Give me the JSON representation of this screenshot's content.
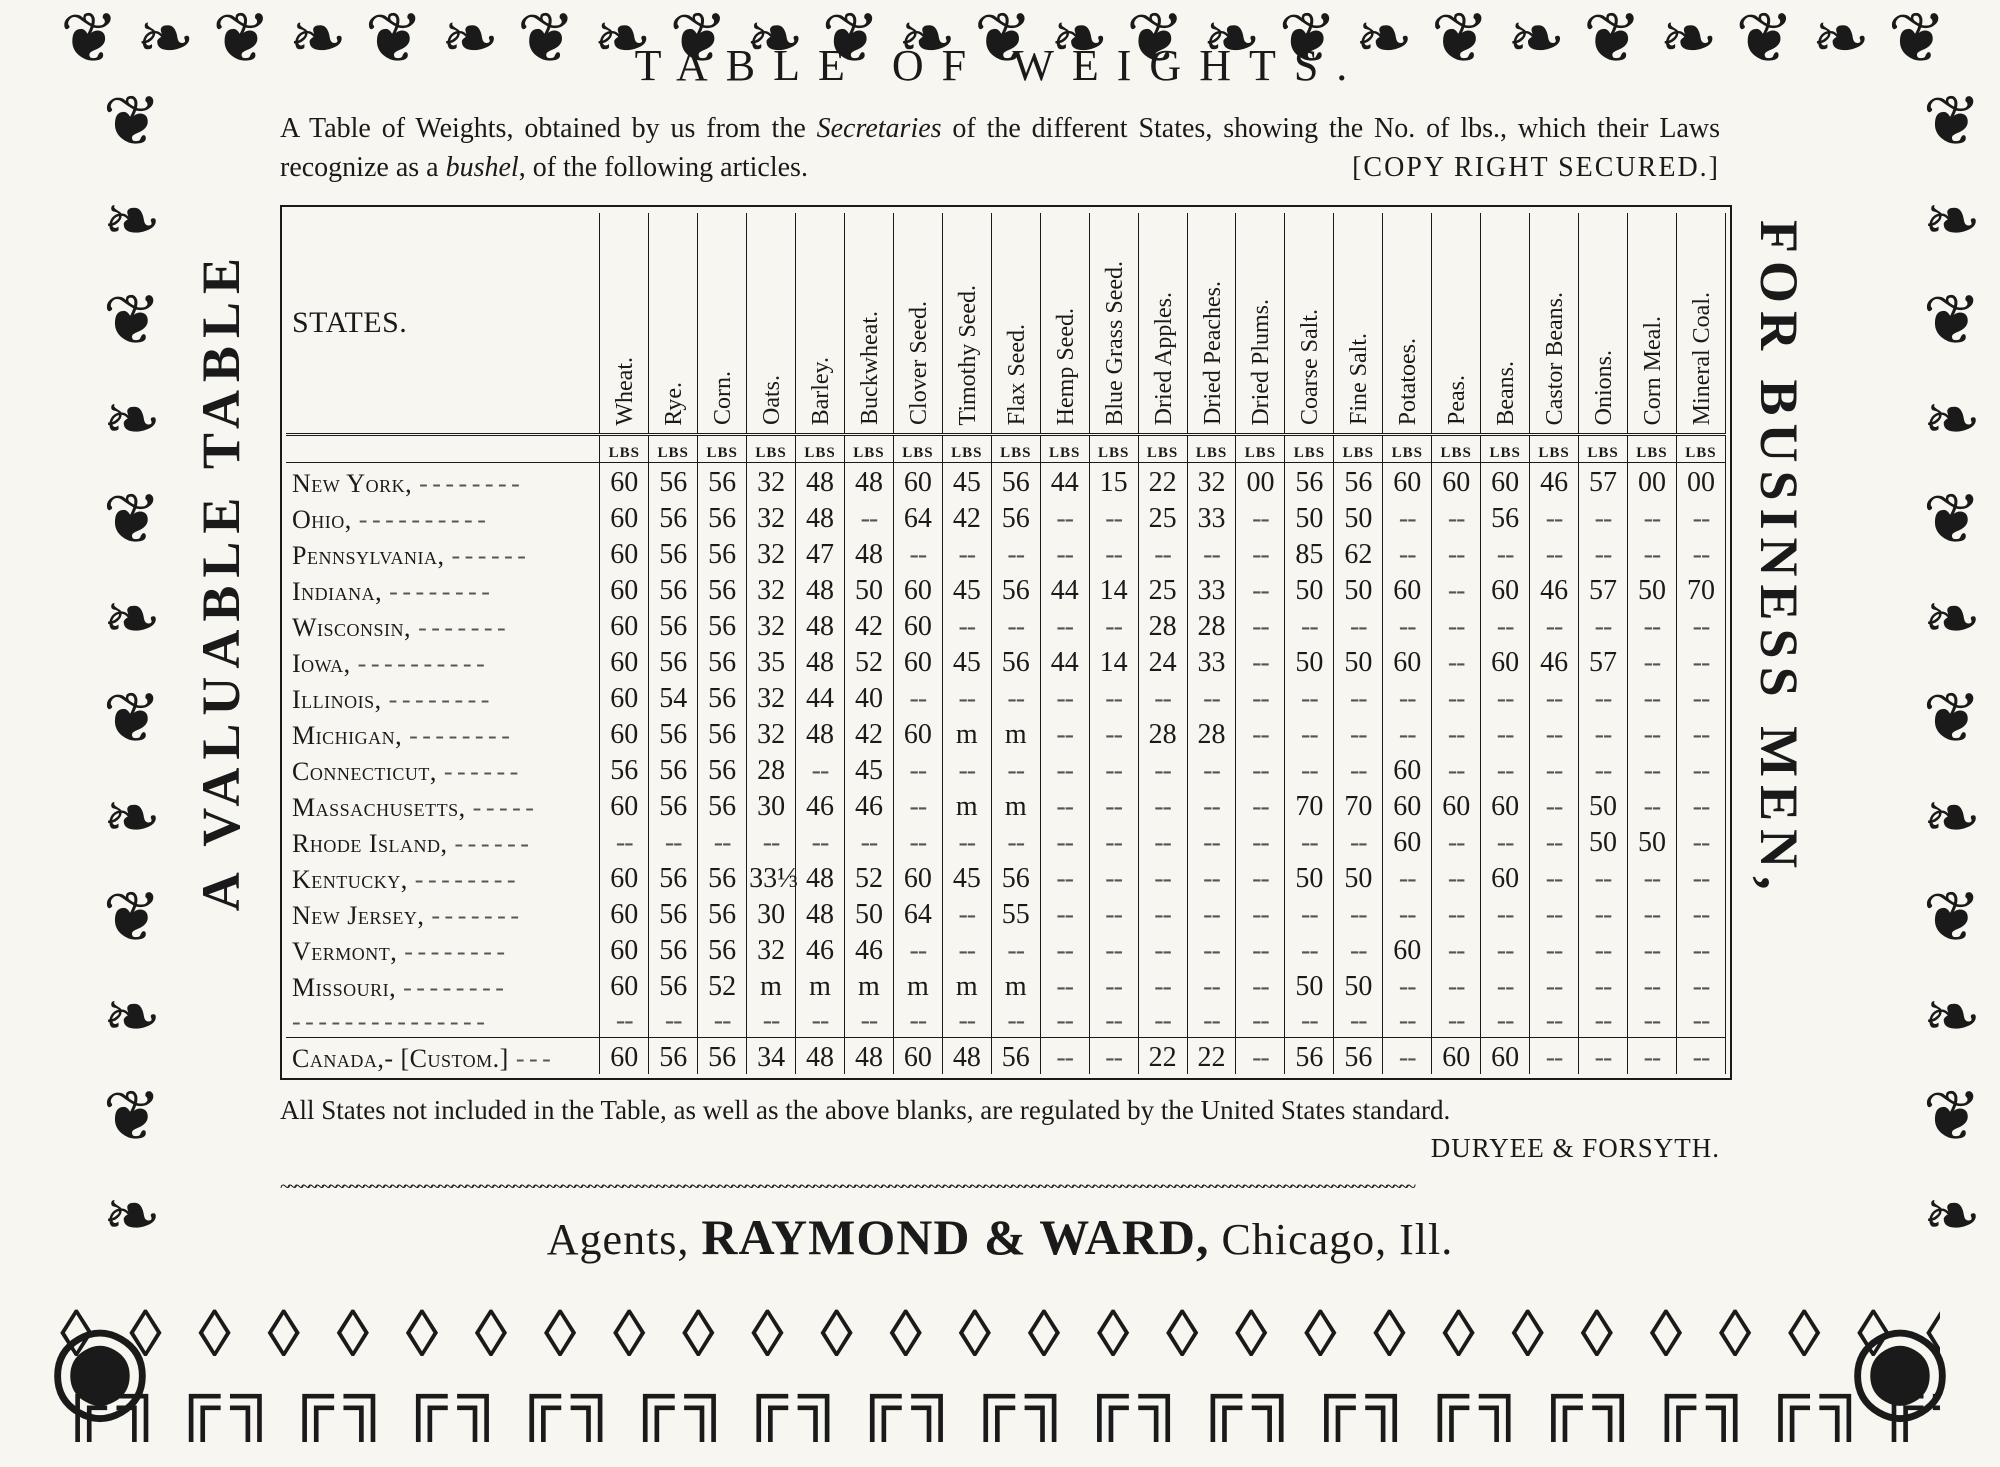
{
  "title": "TABLE OF WEIGHTS.",
  "subtitle_a": "A Table of Weights, obtained by us from the ",
  "subtitle_em1": "Secretaries",
  "subtitle_b": " of the different States, showing the No. of lbs., which their Laws recognize as a ",
  "subtitle_em2": "bushel",
  "subtitle_c": ", of the following articles.",
  "copyright": "[COPY RIGHT SECURED.]",
  "side_left": "A VALUABLE TABLE",
  "side_right": "FOR BUSINESS MEN,",
  "states_header": "STATES.",
  "lbs_label": "LBS",
  "columns": [
    "Wheat.",
    "Rye.",
    "Corn.",
    "Oats.",
    "Barley.",
    "Buckwheat.",
    "Clover Seed.",
    "Timothy Seed.",
    "Flax Seed.",
    "Hemp Seed.",
    "Blue Grass Seed.",
    "Dried Apples.",
    "Dried Peaches.",
    "Dried Plums.",
    "Coarse Salt.",
    "Fine Salt.",
    "Potatoes.",
    "Peas.",
    "Beans.",
    "Castor Beans.",
    "Onions.",
    "Corn Meal.",
    "Mineral Coal."
  ],
  "rows": [
    {
      "name": "New York,",
      "vals": [
        "60",
        "56",
        "56",
        "32",
        "48",
        "48",
        "60",
        "45",
        "56",
        "44",
        "15",
        "22",
        "32",
        "00",
        "56",
        "56",
        "60",
        "60",
        "60",
        "46",
        "57",
        "00",
        "00"
      ]
    },
    {
      "name": "Ohio,",
      "vals": [
        "60",
        "56",
        "56",
        "32",
        "48",
        "--",
        "64",
        "42",
        "56",
        "--",
        "--",
        "25",
        "33",
        "--",
        "50",
        "50",
        "--",
        "--",
        "56",
        "--",
        "--",
        "--",
        "--"
      ]
    },
    {
      "name": "Pennsylvania,",
      "vals": [
        "60",
        "56",
        "56",
        "32",
        "47",
        "48",
        "--",
        "--",
        "--",
        "--",
        "--",
        "--",
        "--",
        "--",
        "85",
        "62",
        "--",
        "--",
        "--",
        "--",
        "--",
        "--",
        "--"
      ]
    },
    {
      "name": "Indiana,",
      "vals": [
        "60",
        "56",
        "56",
        "32",
        "48",
        "50",
        "60",
        "45",
        "56",
        "44",
        "14",
        "25",
        "33",
        "--",
        "50",
        "50",
        "60",
        "--",
        "60",
        "46",
        "57",
        "50",
        "70"
      ]
    },
    {
      "name": "Wisconsin,",
      "vals": [
        "60",
        "56",
        "56",
        "32",
        "48",
        "42",
        "60",
        "--",
        "--",
        "--",
        "--",
        "28",
        "28",
        "--",
        "--",
        "--",
        "--",
        "--",
        "--",
        "--",
        "--",
        "--",
        "--"
      ]
    },
    {
      "name": "Iowa,",
      "vals": [
        "60",
        "56",
        "56",
        "35",
        "48",
        "52",
        "60",
        "45",
        "56",
        "44",
        "14",
        "24",
        "33",
        "--",
        "50",
        "50",
        "60",
        "--",
        "60",
        "46",
        "57",
        "--",
        "--"
      ]
    },
    {
      "name": "Illinois,",
      "vals": [
        "60",
        "54",
        "56",
        "32",
        "44",
        "40",
        "--",
        "--",
        "--",
        "--",
        "--",
        "--",
        "--",
        "--",
        "--",
        "--",
        "--",
        "--",
        "--",
        "--",
        "--",
        "--",
        "--"
      ]
    },
    {
      "name": "Michigan,",
      "vals": [
        "60",
        "56",
        "56",
        "32",
        "48",
        "42",
        "60",
        "m",
        "m",
        "--",
        "--",
        "28",
        "28",
        "--",
        "--",
        "--",
        "--",
        "--",
        "--",
        "--",
        "--",
        "--",
        "--"
      ]
    },
    {
      "name": "Connecticut,",
      "vals": [
        "56",
        "56",
        "56",
        "28",
        "--",
        "45",
        "--",
        "--",
        "--",
        "--",
        "--",
        "--",
        "--",
        "--",
        "--",
        "--",
        "60",
        "--",
        "--",
        "--",
        "--",
        "--",
        "--"
      ]
    },
    {
      "name": "Massachusetts,",
      "vals": [
        "60",
        "56",
        "56",
        "30",
        "46",
        "46",
        "--",
        "m",
        "m",
        "--",
        "--",
        "--",
        "--",
        "--",
        "70",
        "70",
        "60",
        "60",
        "60",
        "--",
        "50",
        "--",
        "--"
      ]
    },
    {
      "name": "Rhode Island,",
      "vals": [
        "--",
        "--",
        "--",
        "--",
        "--",
        "--",
        "--",
        "--",
        "--",
        "--",
        "--",
        "--",
        "--",
        "--",
        "--",
        "--",
        "60",
        "--",
        "--",
        "--",
        "50",
        "50",
        "--"
      ]
    },
    {
      "name": "Kentucky,",
      "vals": [
        "60",
        "56",
        "56",
        "33⅓",
        "48",
        "52",
        "60",
        "45",
        "56",
        "--",
        "--",
        "--",
        "--",
        "--",
        "50",
        "50",
        "--",
        "--",
        "60",
        "--",
        "--",
        "--",
        "--"
      ]
    },
    {
      "name": "New Jersey,",
      "vals": [
        "60",
        "56",
        "56",
        "30",
        "48",
        "50",
        "64",
        "--",
        "55",
        "--",
        "--",
        "--",
        "--",
        "--",
        "--",
        "--",
        "--",
        "--",
        "--",
        "--",
        "--",
        "--",
        "--"
      ]
    },
    {
      "name": "Vermont,",
      "vals": [
        "60",
        "56",
        "56",
        "32",
        "46",
        "46",
        "--",
        "--",
        "--",
        "--",
        "--",
        "--",
        "--",
        "--",
        "--",
        "--",
        "60",
        "--",
        "--",
        "--",
        "--",
        "--",
        "--"
      ]
    },
    {
      "name": "Missouri,",
      "vals": [
        "60",
        "56",
        "52",
        "m",
        "m",
        "m",
        "m",
        "m",
        "m",
        "--",
        "--",
        "--",
        "--",
        "--",
        "50",
        "50",
        "--",
        "--",
        "--",
        "--",
        "--",
        "--",
        "--"
      ]
    }
  ],
  "canada": {
    "name": "Canada,- [Custom.]",
    "vals": [
      "60",
      "56",
      "56",
      "34",
      "48",
      "48",
      "60",
      "48",
      "56",
      "--",
      "--",
      "22",
      "22",
      "--",
      "56",
      "56",
      "--",
      "60",
      "60",
      "--",
      "--",
      "--",
      "--"
    ]
  },
  "footnote_a": "All States not included in the Table, as well as the above blanks, are regulated by the United States standard.",
  "footnote_sig": "DURYEE & FORSYTH.",
  "agents_a": "Agents, ",
  "agents_b": "RAYMOND & WARD,",
  "agents_c": " Chicago, Ill.",
  "dotfill": "- - - - - - - - - - - - - - -"
}
